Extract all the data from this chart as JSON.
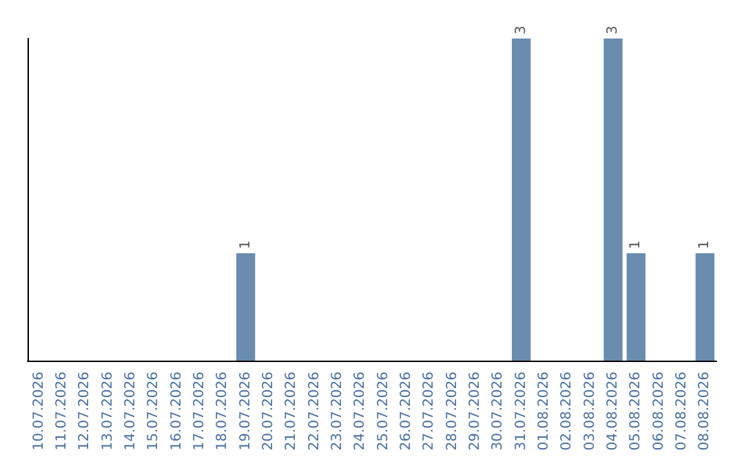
{
  "chart_data": {
    "type": "bar",
    "categories": [
      "10.07.2026",
      "11.07.2026",
      "12.07.2026",
      "13.07.2026",
      "14.07.2026",
      "15.07.2026",
      "16.07.2026",
      "17.07.2026",
      "18.07.2026",
      "19.07.2026",
      "20.07.2026",
      "21.07.2026",
      "22.07.2026",
      "23.07.2026",
      "24.07.2026",
      "25.07.2026",
      "26.07.2026",
      "27.07.2026",
      "28.07.2026",
      "29.07.2026",
      "30.07.2026",
      "31.07.2026",
      "01.08.2026",
      "02.08.2026",
      "03.08.2026",
      "04.08.2026",
      "05.08.2026",
      "06.08.2026",
      "07.08.2026",
      "08.08.2026"
    ],
    "values": [
      0,
      0,
      0,
      0,
      0,
      0,
      0,
      0,
      0,
      1,
      0,
      0,
      0,
      0,
      0,
      0,
      0,
      0,
      0,
      0,
      0,
      3,
      0,
      0,
      0,
      3,
      1,
      0,
      0,
      1
    ],
    "value_labels": [
      null,
      null,
      null,
      null,
      null,
      null,
      null,
      null,
      null,
      "1",
      null,
      null,
      null,
      null,
      null,
      null,
      null,
      null,
      null,
      null,
      null,
      "3",
      null,
      null,
      null,
      "3",
      "1",
      null,
      null,
      "1"
    ],
    "color": "#6a8caf",
    "tick_labels": "x"
  }
}
